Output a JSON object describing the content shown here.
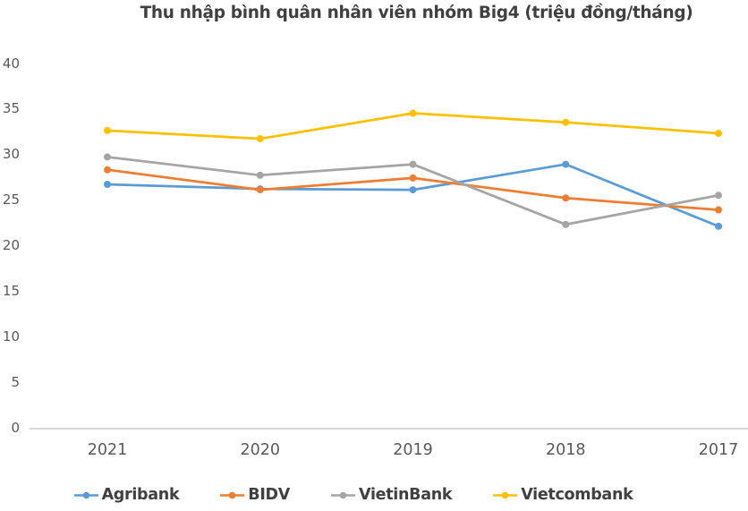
{
  "chart_data": {
    "type": "line",
    "title": "Thu nhập bình quân nhân viên nhóm Big4 (triệu đồng/tháng)",
    "categories": [
      "2021",
      "2020",
      "2019",
      "2018",
      "2017"
    ],
    "series": [
      {
        "name": "Agribank",
        "color": "#5B9BD5",
        "values": [
          26.7,
          26.2,
          26.1,
          28.9,
          22.1
        ]
      },
      {
        "name": "BIDV",
        "color": "#ED7D31",
        "values": [
          28.3,
          26.1,
          27.4,
          25.2,
          23.9
        ]
      },
      {
        "name": "VietinBank",
        "color": "#A5A5A5",
        "values": [
          29.7,
          27.7,
          28.9,
          22.3,
          25.5
        ]
      },
      {
        "name": "Vietcombank",
        "color": "#FFC000",
        "values": [
          32.6,
          31.7,
          34.5,
          33.5,
          32.3
        ]
      }
    ],
    "xlabel": "",
    "ylabel": "",
    "ylim": [
      0,
      40
    ],
    "yticks": [
      0,
      5,
      10,
      15,
      20,
      25,
      30,
      35,
      40
    ],
    "grid": false,
    "legend_position": "bottom",
    "marker": "circle"
  },
  "colors": {
    "title_text": "#404040",
    "legend_text": "#404040",
    "axis_text": "#595959",
    "axis_line": "#D9D9D9",
    "background": "#FFFFFF"
  }
}
